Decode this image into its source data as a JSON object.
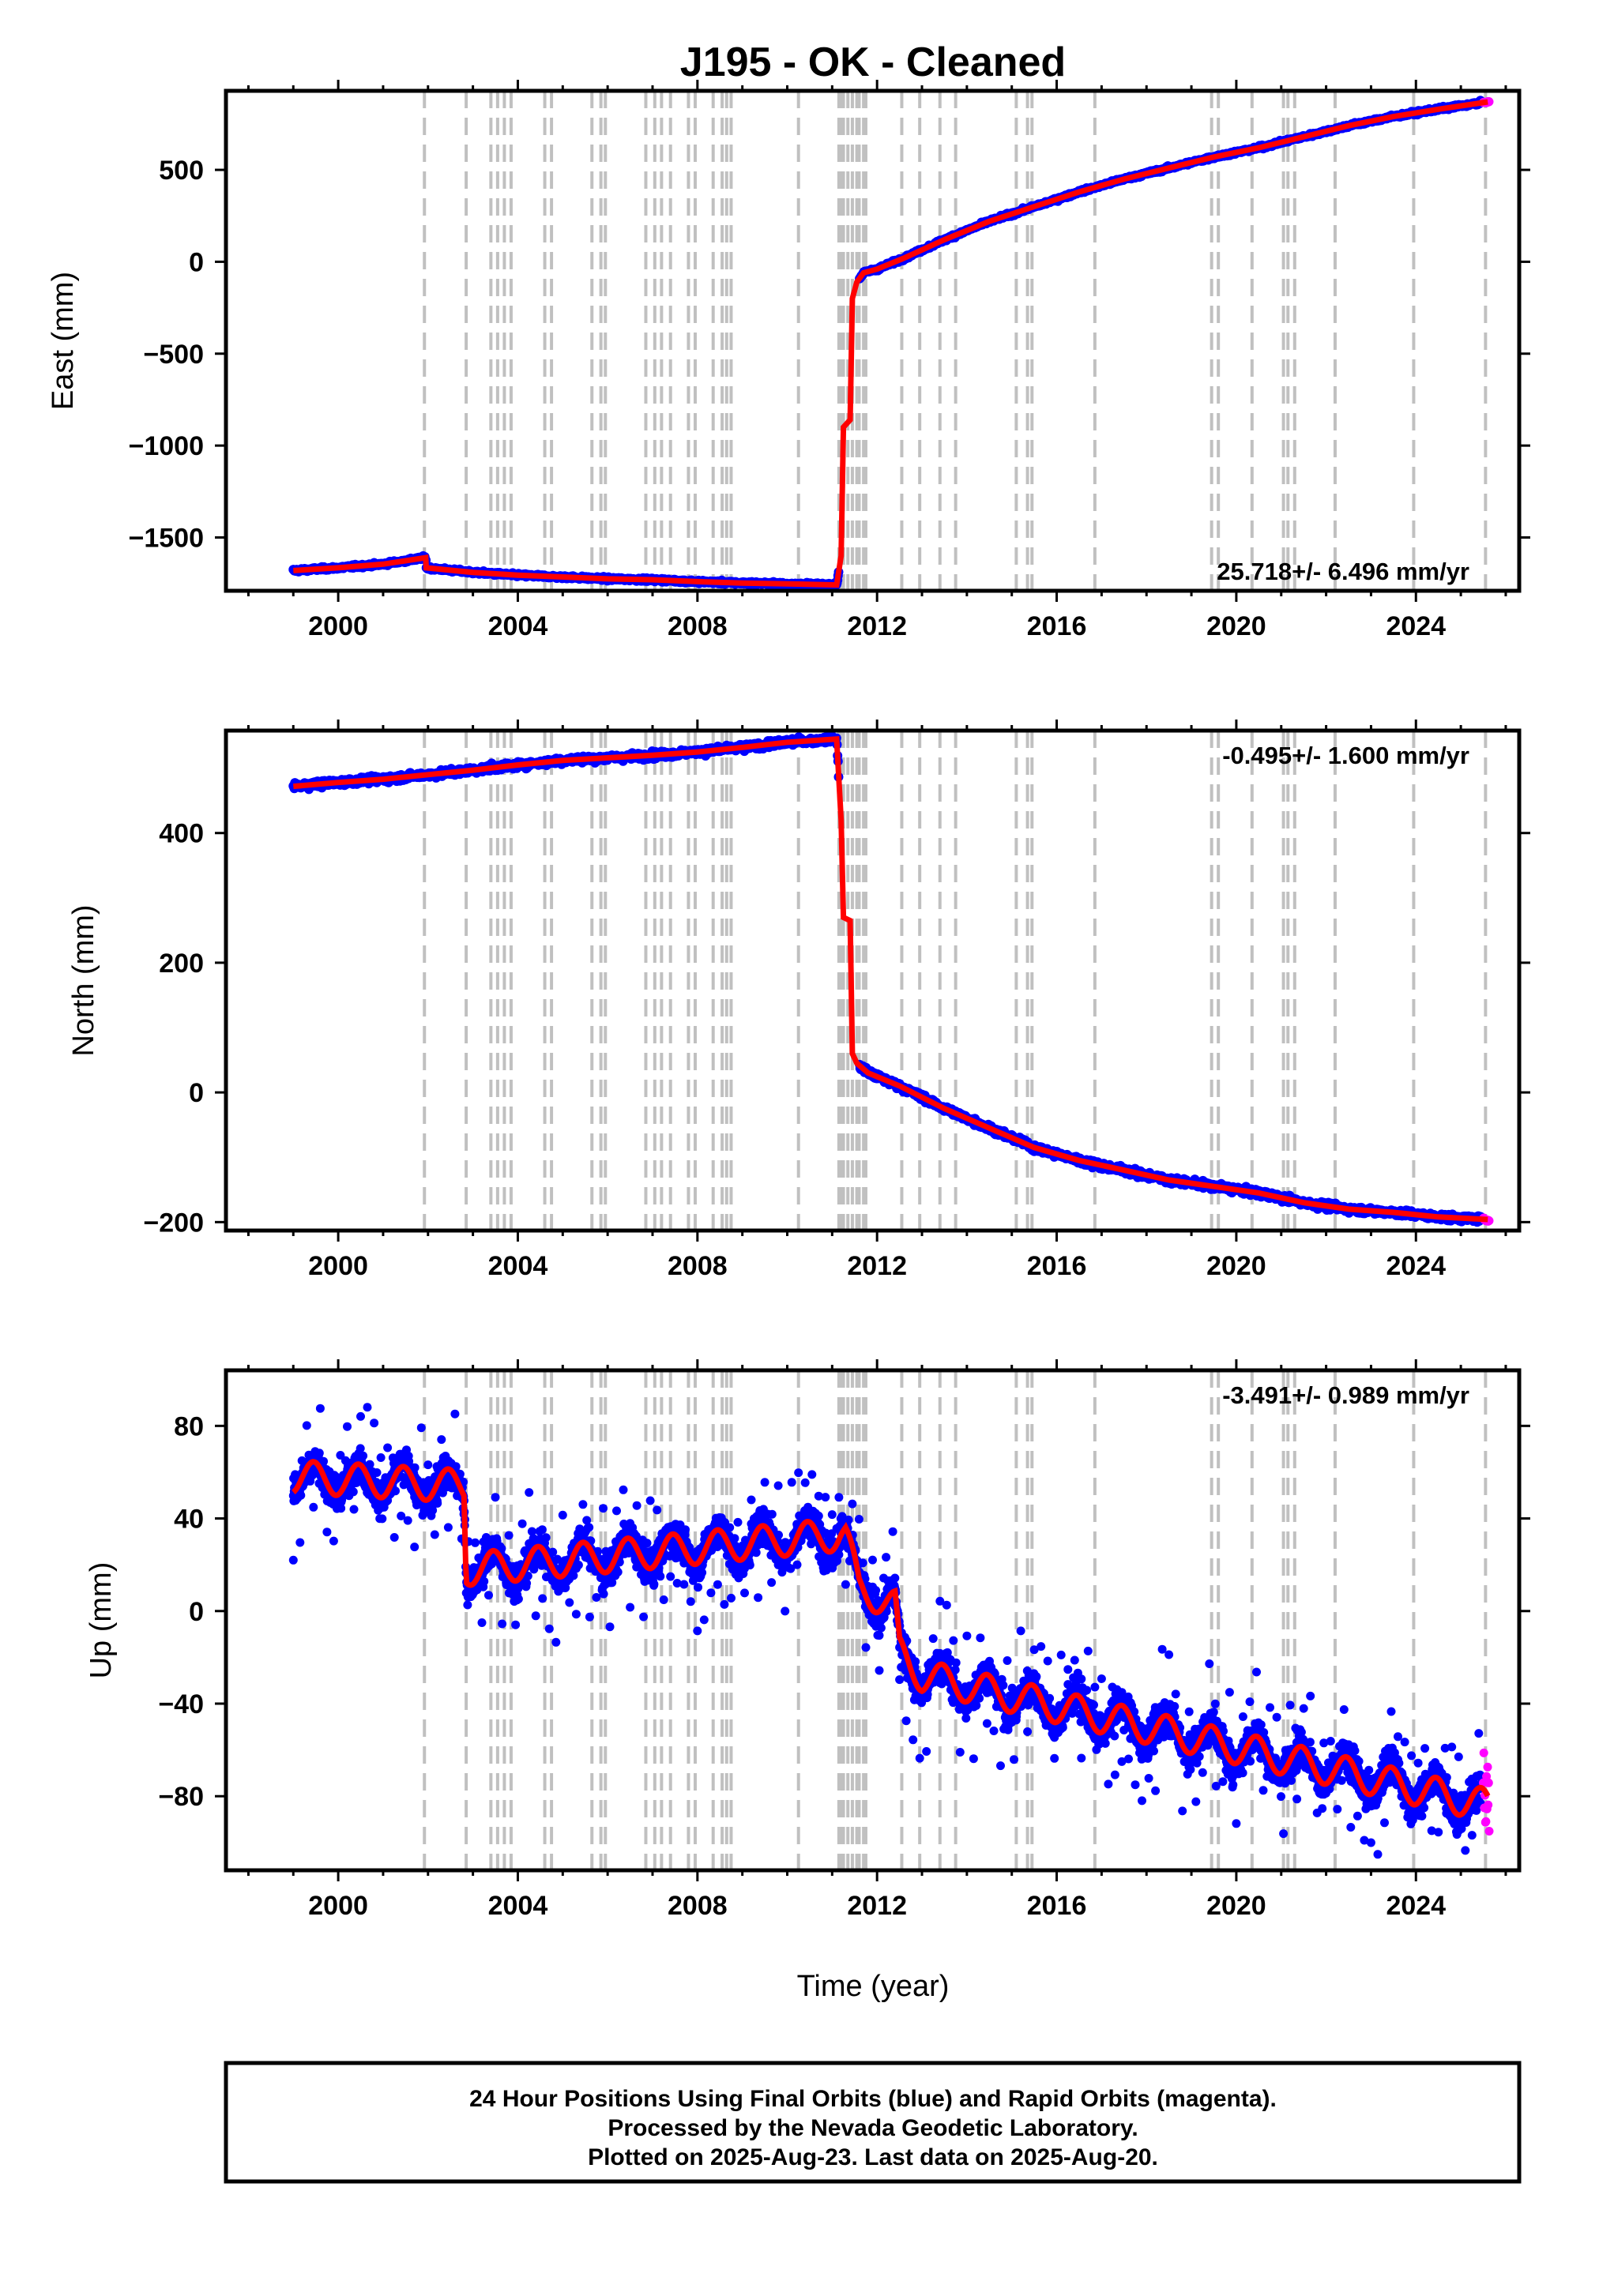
{
  "title": "J195  - OK - Cleaned",
  "xlabel": "Time (year)",
  "caption": [
    "24 Hour Positions Using Final Orbits (blue) and Rapid Orbits (magenta).",
    "Processed by the Nevada Geodetic Laboratory.",
    "Plotted on 2025-Aug-23. Last data on 2025-Aug-20."
  ],
  "colors": {
    "final": "#0000ff",
    "rapid": "#ff00ff",
    "model": "#ff0000",
    "step": "#c0c0c0"
  },
  "chart_data": [
    {
      "type": "scatter",
      "ylabel": "East (mm)",
      "rate": "25.718+/- 6.496 mm/yr",
      "xlim": [
        1997.5,
        2026.3
      ],
      "ylim": [
        -1790,
        930
      ],
      "xticks": [
        2000,
        2004,
        2008,
        2012,
        2016,
        2020,
        2024
      ],
      "yticks": [
        500,
        0,
        -500,
        -1000,
        -1500
      ],
      "ytick_labels": [
        "500",
        "0",
        "−500",
        "−1000",
        "−1500"
      ],
      "series": [
        {
          "role": "model",
          "x": [
            1999.0,
            2000.0,
            2001.0,
            2001.95,
            2001.96,
            2003.0,
            2004.0,
            2005.0,
            2006.0,
            2007.0,
            2008.0,
            2009.0,
            2010.0,
            2011.1,
            2011.2,
            2011.25,
            2011.4,
            2011.45,
            2011.55,
            2011.7,
            2012.0,
            2012.6,
            2013.5,
            2014.5,
            2015.5,
            2016.5,
            2017.5,
            2018.5,
            2019.5,
            2020.5,
            2021.5,
            2022.5,
            2023.5,
            2024.5,
            2025.6
          ],
          "y": [
            -1680,
            -1665,
            -1645,
            -1610,
            -1665,
            -1690,
            -1705,
            -1715,
            -1725,
            -1730,
            -1740,
            -1748,
            -1752,
            -1758,
            -1600,
            -900,
            -860,
            -200,
            -110,
            -60,
            -40,
            20,
            120,
            220,
            300,
            380,
            450,
            510,
            570,
            620,
            680,
            740,
            790,
            830,
            870
          ]
        }
      ]
    },
    {
      "type": "scatter",
      "ylabel": "North (mm)",
      "rate": "-0.495+/- 1.600 mm/yr",
      "xlim": [
        1997.5,
        2026.3
      ],
      "ylim": [
        -213,
        558
      ],
      "xticks": [
        2000,
        2004,
        2008,
        2012,
        2016,
        2020,
        2024
      ],
      "yticks": [
        400,
        200,
        0,
        -200
      ],
      "ytick_labels": [
        "400",
        "200",
        "0",
        "−200"
      ],
      "series": [
        {
          "role": "model",
          "x": [
            1999.0,
            2000.0,
            2001.0,
            2002.0,
            2003.0,
            2004.0,
            2005.0,
            2006.0,
            2007.0,
            2008.0,
            2009.0,
            2010.0,
            2011.1,
            2011.2,
            2011.25,
            2011.4,
            2011.45,
            2011.55,
            2011.8,
            2012.5,
            2013.5,
            2014.5,
            2015.5,
            2016.5,
            2017.5,
            2018.5,
            2019.5,
            2020.5,
            2021.5,
            2022.5,
            2023.5,
            2024.5,
            2025.6
          ],
          "y": [
            472,
            478,
            483,
            490,
            497,
            505,
            512,
            516,
            520,
            525,
            532,
            540,
            545,
            420,
            270,
            265,
            60,
            45,
            30,
            10,
            -25,
            -55,
            -85,
            -105,
            -120,
            -135,
            -145,
            -155,
            -170,
            -180,
            -185,
            -192,
            -196
          ]
        }
      ]
    },
    {
      "type": "scatter",
      "ylabel": "Up (mm)",
      "rate": "-3.491+/- 0.989 mm/yr",
      "xlim": [
        1997.5,
        2026.3
      ],
      "ylim": [
        -112,
        104
      ],
      "xticks": [
        2000,
        2004,
        2008,
        2012,
        2016,
        2020,
        2024
      ],
      "yticks": [
        80,
        40,
        0,
        -40,
        -80
      ],
      "ytick_labels": [
        "80",
        "40",
        "0",
        "−40",
        "−80"
      ],
      "series": [
        {
          "role": "model",
          "x": [
            1999.0,
            2002.8,
            2002.85,
            2011.2,
            2011.3,
            2011.6,
            2012.4,
            2012.5,
            2013.0,
            2025.6
          ],
          "y": [
            58,
            54,
            18,
            33,
            32,
            10,
            2,
            -18,
            -28,
            -84
          ],
          "seasonal_amplitude": 7
        }
      ]
    }
  ],
  "steps": [
    2001.92,
    2002.85,
    2003.4,
    2003.55,
    2003.7,
    2003.85,
    2004.6,
    2004.75,
    2005.65,
    2005.85,
    2005.95,
    2006.85,
    2007.05,
    2007.2,
    2007.4,
    2007.8,
    2007.95,
    2008.35,
    2008.55,
    2008.65,
    2008.75,
    2010.25,
    2011.15,
    2011.2,
    2011.25,
    2011.35,
    2011.45,
    2011.55,
    2011.6,
    2011.7,
    2011.75,
    2012.55,
    2012.95,
    2013.4,
    2013.75,
    2015.1,
    2015.35,
    2015.45,
    2016.85,
    2019.45,
    2019.6,
    2020.35,
    2021.05,
    2021.15,
    2021.3,
    2022.2,
    2023.95,
    2025.55
  ]
}
